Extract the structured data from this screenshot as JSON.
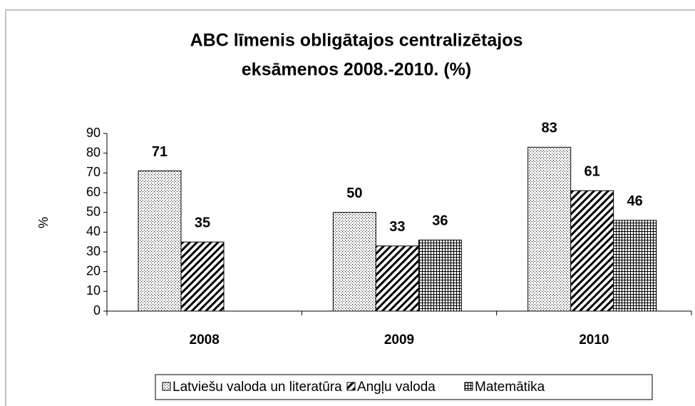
{
  "chart_data": {
    "type": "bar",
    "title": [
      "ABC līmenis obligātajos centralizētajos",
      "eksāmenos 2008.-2010. (%)"
    ],
    "ylabel": "%",
    "categories": [
      "2008",
      "2009",
      "2010"
    ],
    "series": [
      {
        "name": "Latviešu valoda un literatūra",
        "color": "#000000",
        "pattern": "dots",
        "values": [
          71,
          50,
          83
        ]
      },
      {
        "name": "Angļu valoda",
        "color": "#000000",
        "pattern": "hatch",
        "values": [
          35,
          33,
          61
        ]
      },
      {
        "name": "Matemātika",
        "color": "#000000",
        "pattern": "grid",
        "values": [
          null,
          36,
          46
        ]
      }
    ],
    "ylim": [
      0,
      90
    ],
    "yticks": [
      0,
      10,
      20,
      30,
      40,
      50,
      60,
      70,
      80,
      90
    ],
    "grid": false,
    "legend": "bottom"
  }
}
